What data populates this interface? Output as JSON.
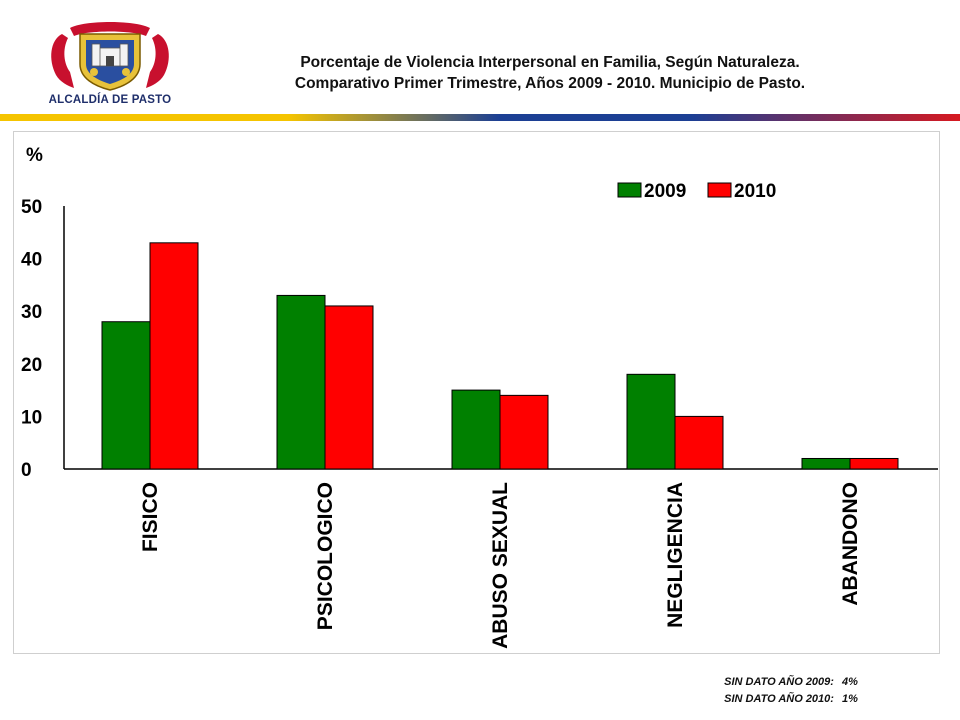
{
  "header": {
    "logo_text": "ALCALDÍA DE PASTO",
    "title_line1": "Porcentaje de Violencia Interpersonal en Familia, Según Naturaleza.",
    "title_line2": "Comparativo Primer Trimestre, Años 2009 - 2010. Municipio de Pasto."
  },
  "colors": {
    "series_2009": "#008000",
    "series_2010": "#ff0000",
    "stripe_yellow": "#f5c400",
    "stripe_blue": "#1c3f94",
    "stripe_red": "#d71920"
  },
  "chart_data": {
    "type": "bar",
    "title": "",
    "ylabel": "%",
    "xlabel": "",
    "ylim": [
      0,
      50
    ],
    "yticks": [
      0,
      10,
      20,
      30,
      40,
      50
    ],
    "grid": false,
    "legend": "top-right",
    "categories": [
      "FISICO",
      "PSICOLOGICO",
      "ABUSO SEXUAL",
      "NEGLIGENCIA",
      "ABANDONO"
    ],
    "series": [
      {
        "name": "2009",
        "values": [
          28,
          33,
          15,
          18,
          2
        ]
      },
      {
        "name": "2010",
        "values": [
          43,
          31,
          14,
          10,
          2
        ]
      }
    ]
  },
  "footnotes": [
    {
      "label": "SIN DATO AÑO 2009:",
      "value": "4%"
    },
    {
      "label": "SIN DATO AÑO 2010:",
      "value": "1%"
    }
  ]
}
